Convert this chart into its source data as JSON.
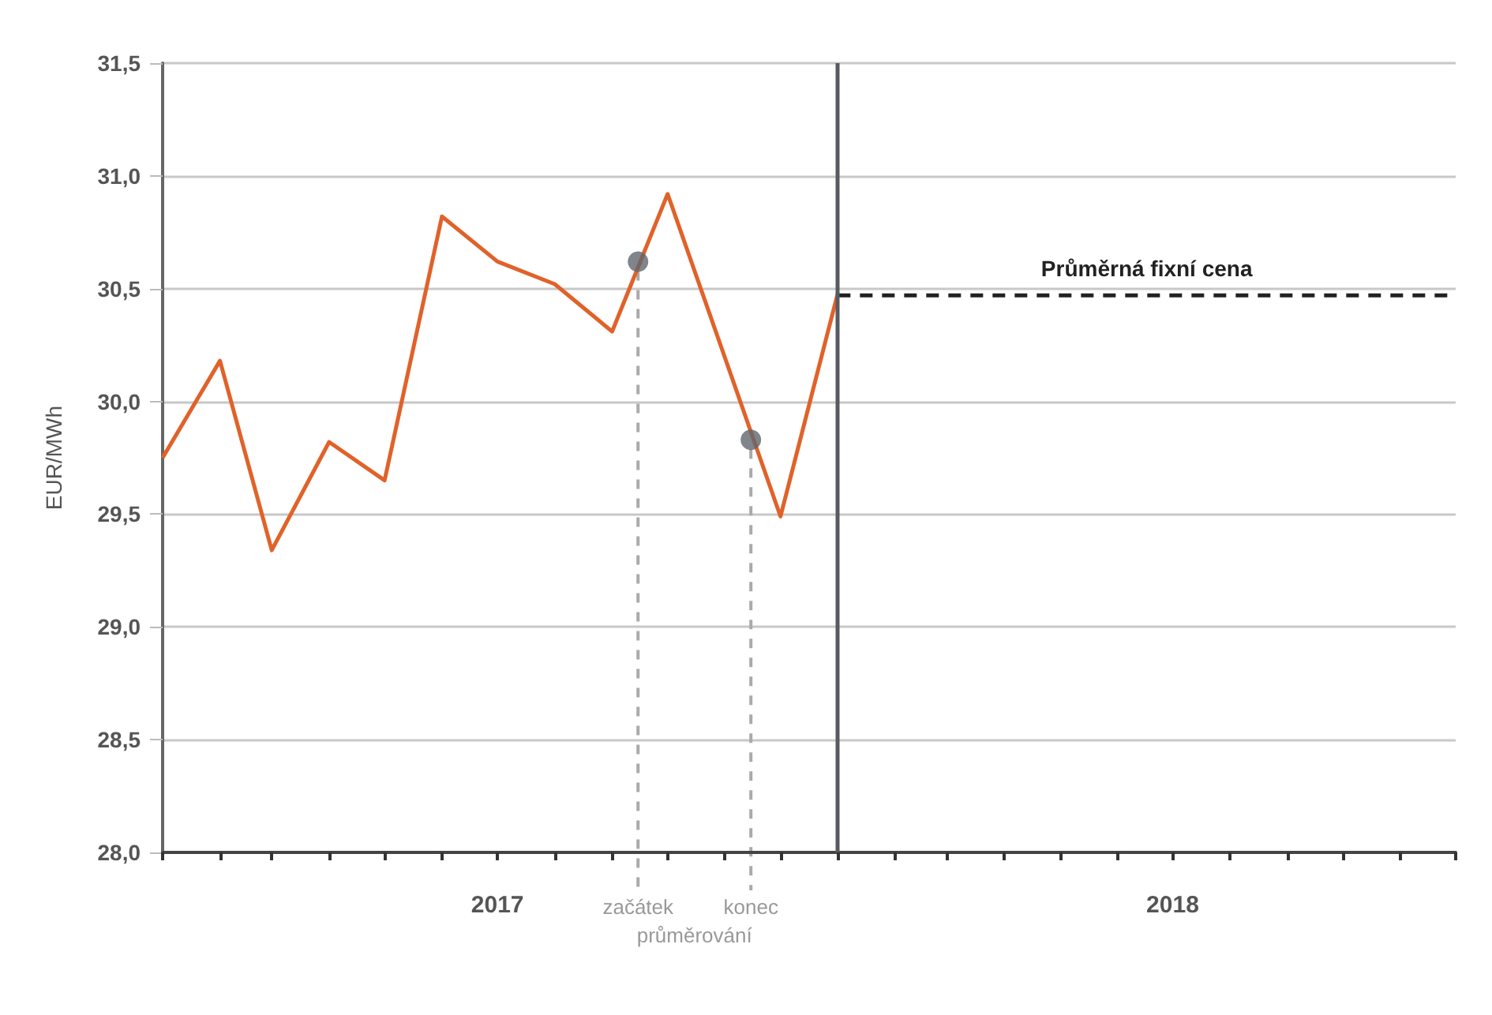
{
  "chart_data": {
    "type": "line",
    "ylabel": "EUR/MWh",
    "xlim": [
      "2017-01",
      "2018-12"
    ],
    "xticks": [
      {
        "value": "2017-01",
        "label": null
      },
      {
        "value": "2017-02",
        "label": null
      },
      {
        "value": "2017-03",
        "label": null
      },
      {
        "value": "2017-04",
        "label": null
      },
      {
        "value": "2017-05",
        "label": null
      },
      {
        "value": "2017-06",
        "label": null
      },
      {
        "value": "2017-07",
        "label": "2017"
      },
      {
        "value": "2017-08",
        "label": null
      },
      {
        "value": "2017-09",
        "label": null
      },
      {
        "value": "2017-10",
        "label": null
      },
      {
        "value": "2017-11",
        "label": null
      },
      {
        "value": "2017-12",
        "label": null
      },
      {
        "value": "2018-01",
        "label": null
      },
      {
        "value": "2018-02",
        "label": null
      },
      {
        "value": "2018-03",
        "label": null
      },
      {
        "value": "2018-04",
        "label": null
      },
      {
        "value": "2018-05",
        "label": null
      },
      {
        "value": "2018-06",
        "label": null
      },
      {
        "value": "2018-07",
        "label": "2018"
      },
      {
        "value": "2018-08",
        "label": null
      },
      {
        "value": "2018-09",
        "label": null
      },
      {
        "value": "2018-10",
        "label": null
      },
      {
        "value": "2018-11",
        "label": null
      },
      {
        "value": "2018-12",
        "label": null
      }
    ],
    "ylim": [
      28,
      31.5
    ],
    "yticks": [
      {
        "value": 28,
        "label": "28,0"
      },
      {
        "value": 28.5,
        "label": "28,5"
      },
      {
        "value": 29,
        "label": "29,0"
      },
      {
        "value": 29.5,
        "label": "29,5"
      },
      {
        "value": 30,
        "label": "30,0"
      },
      {
        "value": 30.5,
        "label": "30,5"
      },
      {
        "value": 31,
        "label": "31,0"
      },
      {
        "value": 31.5,
        "label": "31,5"
      }
    ],
    "grid": "y",
    "legend": false,
    "marker": "none",
    "series": [
      {
        "color": "#e0622a",
        "x": [
          "2017-01",
          "2017-02",
          "2017-03",
          "2017-04",
          "2017-05",
          "2017-06",
          "2017-07",
          "2017-08",
          "2017-09",
          "2017-10",
          "2017-12",
          "2018-01"
        ],
        "values": [
          29.75,
          30.18,
          29.34,
          29.82,
          29.65,
          30.82,
          30.62,
          30.52,
          30.31,
          30.92,
          29.49,
          30.48
        ]
      },
      {
        "name": "Průměrná fixní cena",
        "color": "#222222",
        "line_style": "dashed",
        "x": [
          "2018-01",
          "2018-12"
        ],
        "values": [
          30.47,
          30.47
        ]
      }
    ],
    "ref_lines": [
      {
        "axis": "x",
        "value": "2018-01",
        "color": "#555b61"
      }
    ],
    "annotations": [
      {
        "text": "začátek",
        "x": "2017-09-15",
        "y": 30.62
      },
      {
        "text": "konec",
        "x": "2017-11-15",
        "y": 29.83
      },
      "průměrování"
    ]
  }
}
